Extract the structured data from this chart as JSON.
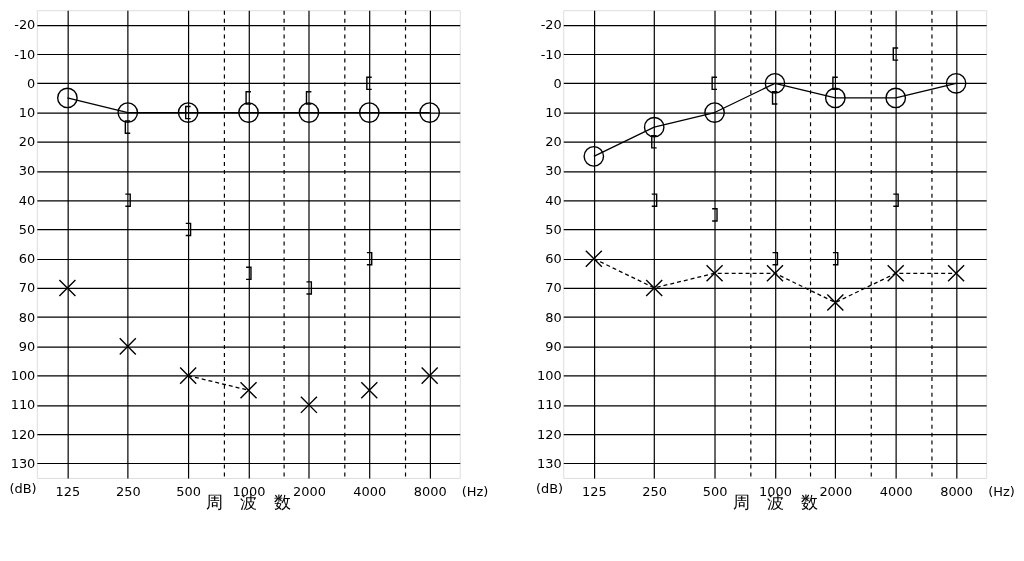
{
  "chart_data": [
    {
      "type": "line",
      "xlabel": "周　波　数",
      "ylabel": "(dB)",
      "annotations": [
        "(Hz)"
      ],
      "grid": true,
      "log": "x",
      "x": [
        125,
        250,
        500,
        1000,
        2000,
        4000,
        8000
      ],
      "xlim": [
        88,
        11300
      ],
      "ylim": [
        135,
        -25
      ],
      "xticks": [
        125,
        250,
        500,
        {
          "value": 750,
          "label": null
        },
        1000,
        {
          "value": 1500,
          "label": null
        },
        2000,
        {
          "value": 3000,
          "label": null
        },
        4000,
        {
          "value": 6000,
          "label": null
        },
        8000
      ],
      "yticks": [
        -20,
        -10,
        0,
        10,
        20,
        30,
        40,
        50,
        60,
        70,
        80,
        90,
        100,
        110,
        120,
        130
      ],
      "series": [
        {
          "type": "line",
          "marker": "circle",
          "line_style": "solid",
          "color": "#000000",
          "values": [
            5,
            10,
            10,
            10,
            10,
            10,
            10
          ]
        },
        {
          "type": "scatter",
          "color": "#000000",
          "values": [
            null,
            15,
            10,
            5,
            5,
            0,
            null
          ]
        },
        {
          "type": "scatter",
          "color": "#000000",
          "values": [
            null,
            40,
            50,
            65,
            70,
            60,
            null
          ]
        },
        {
          "type": "scatter",
          "marker": "cross",
          "color": "#000000",
          "values": [
            70,
            90,
            100,
            105,
            110,
            105,
            100
          ]
        },
        {
          "type": "line",
          "marker": "none",
          "line_style": "dashed",
          "color": "#000000",
          "values": [
            null,
            null,
            100,
            105,
            null,
            null,
            null
          ]
        }
      ]
    },
    {
      "type": "line",
      "xlabel": "周　波　数",
      "ylabel": "(dB)",
      "annotations": [
        "(Hz)"
      ],
      "grid": true,
      "log": "x",
      "x": [
        125,
        250,
        500,
        1000,
        2000,
        4000,
        8000
      ],
      "xlim": [
        88,
        11300
      ],
      "ylim": [
        135,
        -25
      ],
      "xticks": [
        125,
        250,
        500,
        {
          "value": 750,
          "label": null
        },
        1000,
        {
          "value": 1500,
          "label": null
        },
        2000,
        {
          "value": 3000,
          "label": null
        },
        4000,
        {
          "value": 6000,
          "label": null
        },
        8000
      ],
      "yticks": [
        -20,
        -10,
        0,
        10,
        20,
        30,
        40,
        50,
        60,
        70,
        80,
        90,
        100,
        110,
        120,
        130
      ],
      "series": [
        {
          "type": "line",
          "marker": "circle",
          "line_style": "solid",
          "color": "#000000",
          "values": [
            25,
            15,
            10,
            0,
            5,
            5,
            0
          ]
        },
        {
          "type": "scatter",
          "color": "#000000",
          "values": [
            null,
            20,
            0,
            5,
            0,
            -10,
            null
          ]
        },
        {
          "type": "scatter",
          "color": "#000000",
          "values": [
            null,
            40,
            45,
            60,
            60,
            40,
            null
          ]
        },
        {
          "type": "line",
          "marker": "cross",
          "line_style": "dashed",
          "color": "#000000",
          "values": [
            60,
            70,
            65,
            65,
            75,
            65,
            65
          ]
        }
      ]
    }
  ]
}
